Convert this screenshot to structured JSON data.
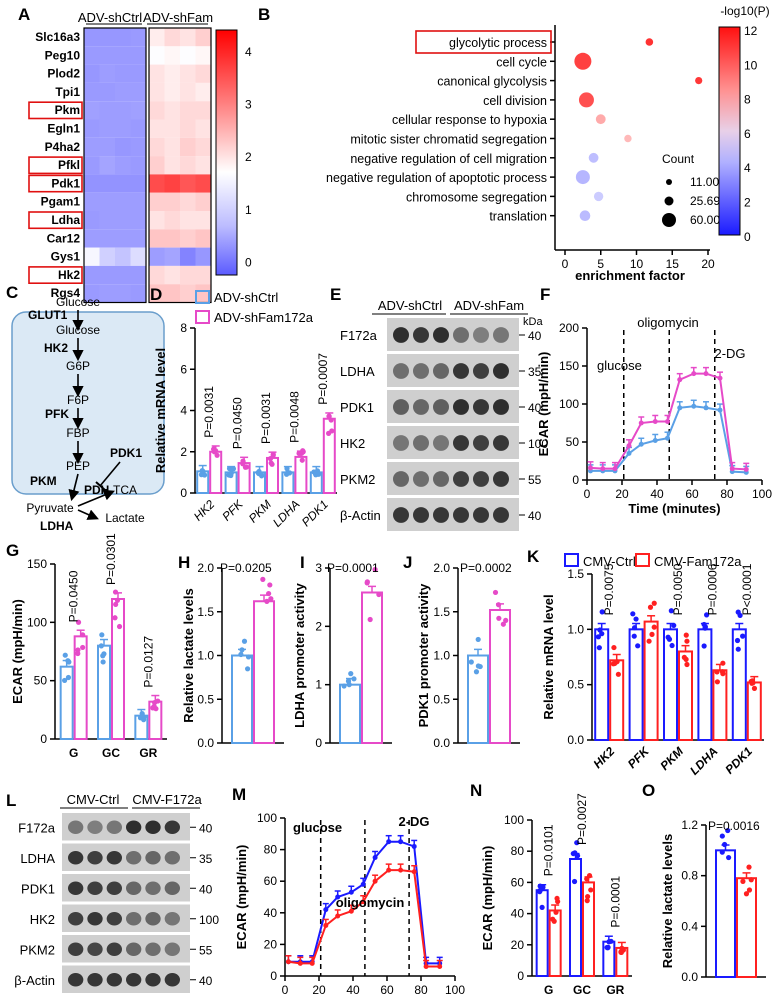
{
  "panels": {
    "A": "A",
    "B": "B",
    "C": "C",
    "D": "D",
    "E": "E",
    "F": "F",
    "G": "G",
    "H": "H",
    "I": "I",
    "J": "J",
    "K": "K",
    "L": "L",
    "M": "M",
    "N": "N",
    "O": "O"
  },
  "colors": {
    "blue": "#5aa0e6",
    "pink": "#e64ac8",
    "dblue": "#1a1aff",
    "red": "#ff2020"
  },
  "A": {
    "groups": [
      "ADV-shCtrl",
      "ADV-shFam"
    ],
    "genes": [
      "Slc16a3",
      "Peg10",
      "Plod2",
      "Tpi1",
      "Pkm",
      "Egln1",
      "P4ha2",
      "Pfkl",
      "Pdk1",
      "Pgam1",
      "Ldha",
      "Car12",
      "Gys1",
      "Hk2",
      "Rgs4"
    ],
    "boxed": [
      "Pkm",
      "Pfkl",
      "Pdk1",
      "Ldha",
      "Hk2"
    ],
    "scale_ticks": [
      "4",
      "3",
      "2",
      "1",
      "0"
    ],
    "values": [
      [
        0.4,
        0.4,
        0.4,
        0.45,
        2.2,
        2.4,
        2.3,
        2.5
      ],
      [
        0.45,
        0.45,
        0.45,
        0.45,
        2.0,
        2.1,
        2.0,
        2.1
      ],
      [
        0.4,
        0.5,
        0.45,
        0.45,
        2.3,
        2.2,
        2.3,
        2.4
      ],
      [
        0.45,
        0.45,
        0.5,
        0.5,
        2.3,
        2.2,
        2.3,
        2.2
      ],
      [
        0.55,
        0.5,
        0.5,
        0.55,
        2.4,
        2.3,
        2.4,
        2.4
      ],
      [
        0.45,
        0.5,
        0.5,
        0.45,
        2.3,
        2.3,
        2.4,
        2.3
      ],
      [
        0.5,
        0.5,
        0.4,
        0.45,
        2.4,
        2.3,
        2.5,
        2.4
      ],
      [
        0.45,
        0.6,
        0.5,
        0.45,
        2.5,
        2.3,
        2.4,
        2.3
      ],
      [
        0.35,
        0.35,
        0.35,
        0.35,
        3.8,
        3.9,
        3.7,
        3.8
      ],
      [
        0.5,
        0.5,
        0.5,
        0.5,
        2.5,
        2.5,
        2.4,
        2.5
      ],
      [
        0.45,
        0.5,
        0.5,
        0.5,
        2.3,
        2.4,
        2.3,
        2.3
      ],
      [
        0.5,
        0.5,
        0.5,
        0.5,
        2.6,
        2.6,
        2.5,
        2.6
      ],
      [
        1.9,
        1.3,
        1.1,
        1.5,
        0.5,
        0.6,
        0.1,
        0.4
      ],
      [
        0.45,
        0.45,
        0.45,
        0.45,
        2.4,
        2.3,
        2.4,
        2.4
      ],
      [
        0.45,
        0.5,
        0.5,
        0.45,
        2.6,
        2.6,
        2.5,
        2.6
      ]
    ]
  },
  "B": {
    "title": "-log10(P)",
    "xlabel": "enrichment factor",
    "xticks": [
      "0",
      "5",
      "10",
      "15",
      "20"
    ],
    "cticks": [
      "12",
      "10",
      "8",
      "6",
      "4",
      "2",
      "0"
    ],
    "count_title": "Count",
    "counts": [
      "11.00",
      "25.69",
      "60.00"
    ],
    "terms": [
      {
        "name": "glycolytic process",
        "x": 11.8,
        "logp": 11,
        "count": 13,
        "boxed": true
      },
      {
        "name": "cell cycle",
        "x": 2.5,
        "logp": 10.5,
        "count": 60
      },
      {
        "name": "canonical glycolysis",
        "x": 18.7,
        "logp": 10.8,
        "count": 11
      },
      {
        "name": "cell division",
        "x": 3.0,
        "logp": 10,
        "count": 50
      },
      {
        "name": "cellular response to hypoxia",
        "x": 5.0,
        "logp": 7,
        "count": 24
      },
      {
        "name": "mitotic sister chromatid segregation",
        "x": 8.8,
        "logp": 6.5,
        "count": 12
      },
      {
        "name": "negative regulation of cell migration",
        "x": 4.0,
        "logp": 5.3,
        "count": 24
      },
      {
        "name": "negative regulation of  apoptotic process",
        "x": 2.5,
        "logp": 5,
        "count": 45
      },
      {
        "name": "chromosome segregation",
        "x": 4.7,
        "logp": 5.8,
        "count": 22
      },
      {
        "name": "translation",
        "x": 2.8,
        "logp": 5.2,
        "count": 28
      }
    ]
  },
  "C": {
    "nodes": [
      "Glucose",
      "GLUT1",
      "Glucose",
      "HK2",
      "G6P",
      "F6P",
      "PFK",
      "FBP",
      "PEP",
      "PDK1",
      "PKM",
      "PDH",
      "Pyruvate",
      "TCA",
      "LDHA",
      "Lactate"
    ]
  },
  "D": {
    "legend": [
      "ADV-shCtrl",
      "ADV-shFam172a"
    ],
    "ylabel": "Relative mRNA level",
    "yticks": [
      "0",
      "2",
      "4",
      "6",
      "8"
    ],
    "cats": [
      "HK2",
      "PFK",
      "PKM",
      "LDHA",
      "PDK1"
    ],
    "ctrl": [
      1.05,
      1.0,
      1.0,
      1.0,
      1.0
    ],
    "fam": [
      2.0,
      1.45,
      1.7,
      1.75,
      3.6
    ],
    "pvals": [
      "P=0.0031",
      "P=0.0450",
      "P=0.0031",
      "P=0.0048",
      "P=0.0007"
    ]
  },
  "E": {
    "header": [
      "ADV-shCtrl",
      "ADV-shFam"
    ],
    "unit": "kDa",
    "bands": [
      {
        "name": "F172a",
        "kda": "40"
      },
      {
        "name": "LDHA",
        "kda": "35"
      },
      {
        "name": "PDK1",
        "kda": "40"
      },
      {
        "name": "HK2",
        "kda": "100"
      },
      {
        "name": "PKM2",
        "kda": "55"
      },
      {
        "name": "β-Actin",
        "kda": "40"
      }
    ]
  },
  "F": {
    "ylabel": "ECAR (mpH/min)",
    "xlabel": "Time (minutes)",
    "xticks": [
      "0",
      "20",
      "40",
      "60",
      "80",
      "100"
    ],
    "yticks": [
      "0",
      "50",
      "100",
      "150",
      "200"
    ],
    "labels": [
      "glucose",
      "oligomycin",
      "2-DG"
    ],
    "t": [
      2,
      9,
      16,
      24,
      31,
      39,
      46,
      53,
      61,
      68,
      76,
      83,
      91
    ],
    "ctrl": [
      12,
      12,
      12,
      35,
      47,
      52,
      55,
      95,
      97,
      95,
      92,
      11,
      10
    ],
    "fam": [
      16,
      15,
      15,
      45,
      75,
      77,
      77,
      132,
      140,
      140,
      134,
      15,
      14
    ]
  },
  "G": {
    "ylabel": "ECAR (mpH/min)",
    "yticks": [
      "0",
      "50",
      "100",
      "150"
    ],
    "cats": [
      "G",
      "GC",
      "GR"
    ],
    "ctrl": [
      62,
      80,
      20
    ],
    "fam": [
      88,
      120,
      32
    ],
    "pvals": [
      "P=0.0450",
      "P=0.0301",
      "P=0.0127"
    ]
  },
  "H": {
    "ylabel": "Relative lactate levels",
    "yticks": [
      "0.0",
      "0.5",
      "1.0",
      "1.5",
      "2.0"
    ],
    "ctrl": 1.0,
    "fam": 1.62,
    "pval": "P=0.0205"
  },
  "I": {
    "ylabel": "LDHA promoter activity",
    "yticks": [
      "0",
      "1",
      "2",
      "3"
    ],
    "ctrl": 1.0,
    "fam": 2.58,
    "pval": "P=0.0001"
  },
  "J": {
    "ylabel": "PDK1 promoter activity",
    "yticks": [
      "0.0",
      "0.5",
      "1.0",
      "1.5",
      "2.0"
    ],
    "ctrl": 1.0,
    "fam": 1.52,
    "pval": "P=0.0002"
  },
  "K": {
    "legend": [
      "CMV-Ctrl",
      "CMV-Fam172a"
    ],
    "ylabel": "Relative mRNA level",
    "yticks": [
      "0.0",
      "0.5",
      "1.0",
      "1.5"
    ],
    "cats": [
      "HK2",
      "PFK",
      "PKM",
      "LDHA",
      "PDK1"
    ],
    "ctrl": [
      1.0,
      1.0,
      1.0,
      1.0,
      1.0
    ],
    "fam": [
      0.72,
      1.07,
      0.8,
      0.63,
      0.52
    ],
    "pvals": [
      "P=0.0075",
      "",
      "P=0.0050",
      "P=0.0006",
      "P<0.0001"
    ]
  },
  "L": {
    "header": [
      "CMV-Ctrl",
      "CMV-F172a"
    ],
    "bands": [
      {
        "name": "F172a",
        "kda": "40"
      },
      {
        "name": "LDHA",
        "kda": "35"
      },
      {
        "name": "PDK1",
        "kda": "40"
      },
      {
        "name": "HK2",
        "kda": "100"
      },
      {
        "name": "PKM2",
        "kda": "55"
      },
      {
        "name": "β-Actin",
        "kda": "40"
      }
    ]
  },
  "M": {
    "ylabel": "ECAR (mpH/min)",
    "xlabel": "Time (minutes)",
    "xticks": [
      "0",
      "20",
      "40",
      "60",
      "80",
      "100"
    ],
    "yticks": [
      "0",
      "20",
      "40",
      "60",
      "80",
      "100"
    ],
    "labels": [
      "glucose",
      "oligomycin",
      "2-DG"
    ],
    "t": [
      2,
      9,
      16,
      24,
      31,
      39,
      46,
      53,
      61,
      68,
      76,
      83,
      91
    ],
    "ctrl": [
      9,
      9,
      9,
      42,
      50,
      53,
      58,
      75,
      85,
      85,
      82,
      8,
      8
    ],
    "fam": [
      9,
      8,
      8,
      32,
      38,
      41,
      47,
      60,
      67,
      67,
      66,
      6,
      6
    ]
  },
  "N": {
    "ylabel": "ECAR (mpH/min)",
    "yticks": [
      "0",
      "20",
      "40",
      "60",
      "80",
      "100"
    ],
    "cats": [
      "G",
      "GC",
      "GR"
    ],
    "ctrl": [
      55,
      75,
      22
    ],
    "fam": [
      42,
      60,
      18
    ],
    "pvals": [
      "P=0.0101",
      "P=0.0027",
      "P=0.0001"
    ]
  },
  "O": {
    "ylabel": "Relative lactate levels",
    "yticks": [
      "0.0",
      "0.4",
      "0.8",
      "1.2"
    ],
    "ctrl": 1.0,
    "fam": 0.78,
    "pval": "P=0.0016"
  }
}
